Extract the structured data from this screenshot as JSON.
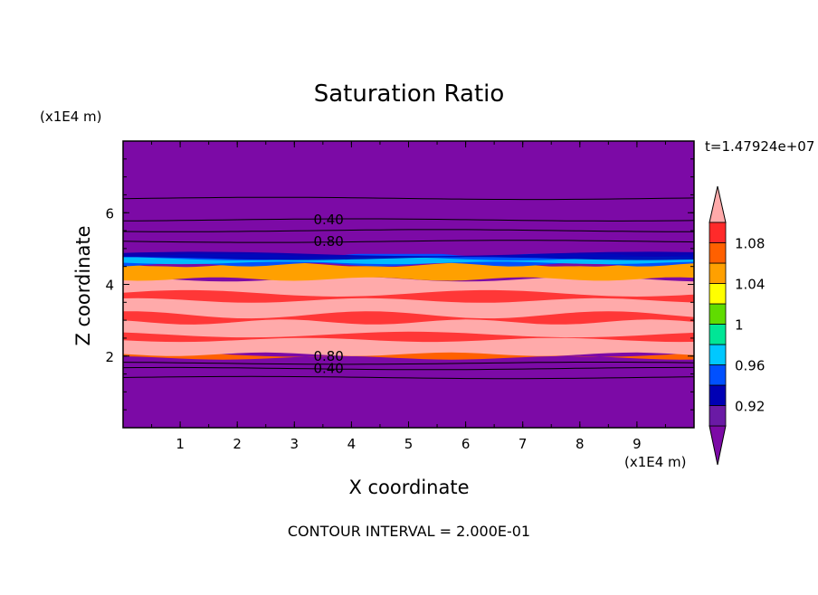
{
  "chart_data": {
    "type": "heatmap",
    "title": "Saturation Ratio",
    "xlabel": "X coordinate",
    "ylabel": "Z coordinate",
    "x_scale_label": "(x1E4 m)",
    "y_scale_label": "(x1E4 m)",
    "time_label": "t=1.47924e+07",
    "footer": "CONTOUR INTERVAL = 2.000E-01",
    "xlim": [
      0,
      10
    ],
    "ylim": [
      0,
      8
    ],
    "x_ticks": [
      1,
      2,
      3,
      4,
      5,
      6,
      7,
      8,
      9
    ],
    "x_tick_labels": [
      "1",
      "2",
      "3",
      "4",
      "5",
      "6",
      "7",
      "8",
      "9"
    ],
    "y_ticks": [
      2,
      4,
      6
    ],
    "y_tick_labels": [
      "2",
      "4",
      "6"
    ],
    "colorbar": {
      "levels": [
        0.9,
        0.92,
        0.94,
        0.96,
        0.98,
        1.0,
        1.02,
        1.04,
        1.06,
        1.08,
        1.1
      ],
      "tick_values": [
        0.92,
        0.96,
        1.0,
        1.04,
        1.08
      ],
      "tick_labels": [
        "0.92",
        "0.96",
        "1",
        "1.04",
        "1.08"
      ],
      "colors": [
        "#6a1aa5",
        "#0000b4",
        "#0050ff",
        "#00c8ff",
        "#00e696",
        "#60dc00",
        "#ffff00",
        "#ffa000",
        "#ff6000",
        "#ff2a2a"
      ],
      "under_color": "#7c0aa6",
      "over_color": "#ffaaaa"
    },
    "contour_labels": [
      {
        "text": "0.40",
        "x": 3.6,
        "z": 5.8
      },
      {
        "text": "0.80",
        "x": 3.6,
        "z": 5.2
      },
      {
        "text": "0.80",
        "x": 3.6,
        "z": 2.0
      },
      {
        "text": "0.40",
        "x": 3.6,
        "z": 1.65
      }
    ],
    "field_bands": [
      {
        "zmin": 0.0,
        "zmax": 1.95,
        "value": "below 0.9"
      },
      {
        "zmin": 1.95,
        "zmax": 2.05,
        "value": 1.06
      },
      {
        "zmin": 2.05,
        "zmax": 4.15,
        "value": "above 1.1"
      },
      {
        "zmin": 4.15,
        "zmax": 4.55,
        "value": 1.05
      },
      {
        "zmin": 4.55,
        "zmax": 4.85,
        "value": 0.95
      },
      {
        "zmin": 4.85,
        "zmax": 8.0,
        "value": "below 0.9"
      }
    ],
    "contour_levels_z": [
      1.4,
      1.65,
      1.8,
      5.2,
      5.5,
      5.8,
      6.4
    ]
  }
}
